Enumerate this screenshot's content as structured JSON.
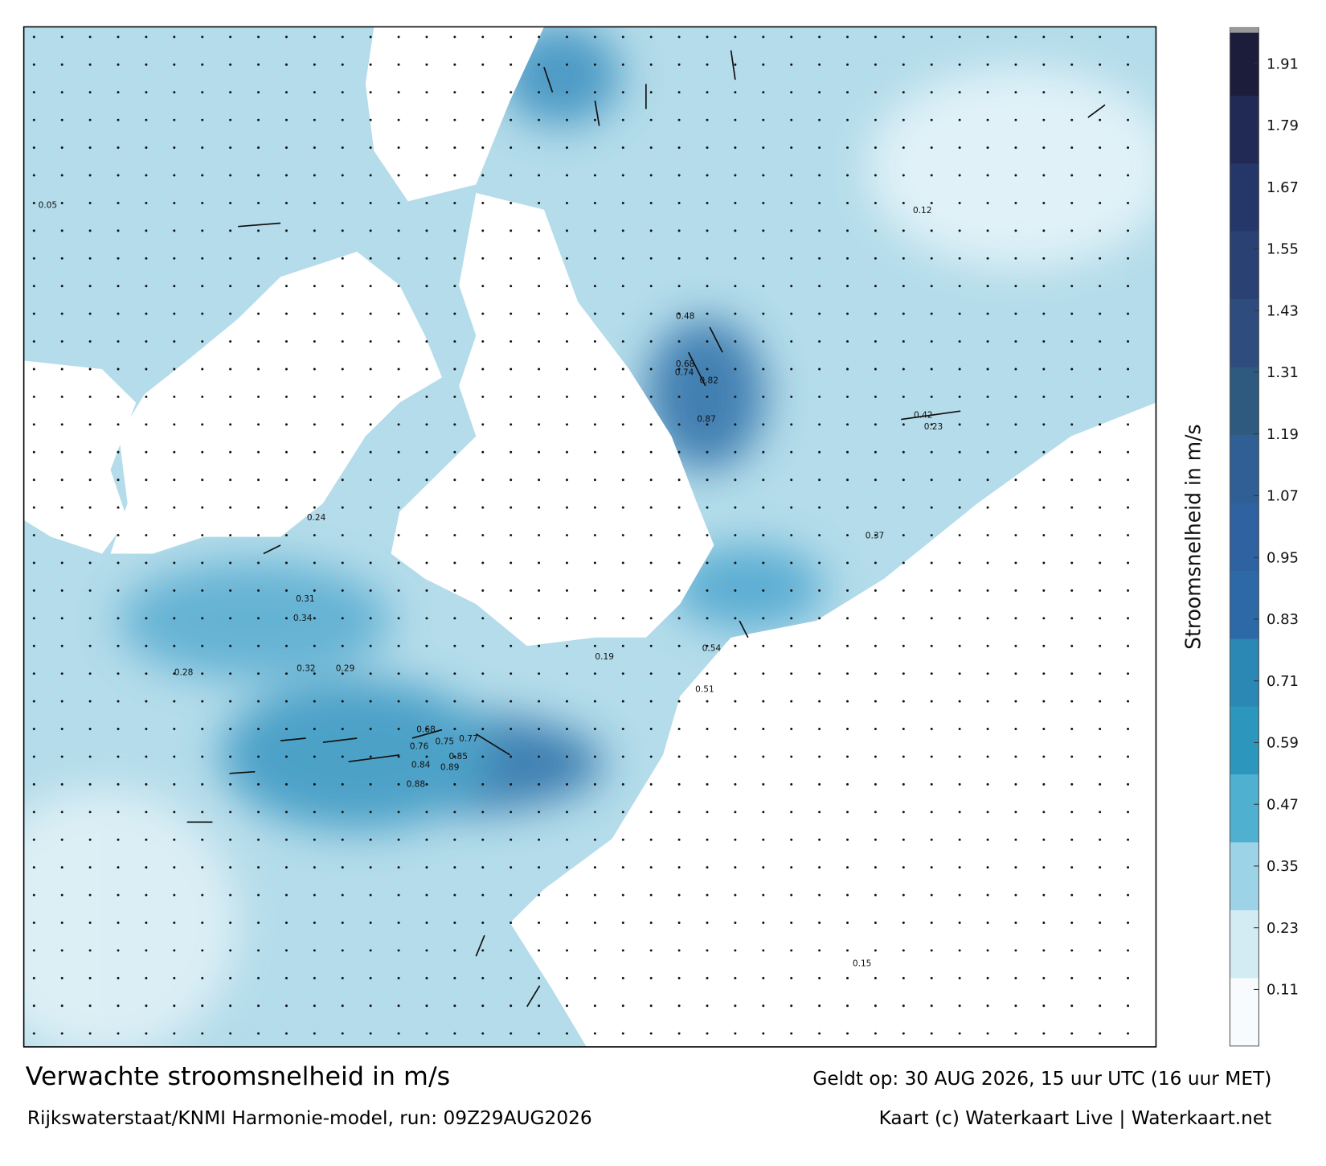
{
  "map": {
    "title": "Verwachte stroomsnelheid in m/s",
    "subtitle": "Rijkswaterstaat/KNMI Harmonie-model, run: 09Z29AUG2026",
    "valid_time": "Geldt op: 30 AUG 2026, 15 uur UTC (16 uur MET)",
    "credit": "Kaart (c) Waterkaart Live | Waterkaart.net",
    "speed_labels": [
      "0.84",
      "0.89",
      "0.85",
      "0.76",
      "0.88",
      "0.68",
      "0.75",
      "0.77",
      "0.82",
      "0.74",
      "0.87",
      "0.68",
      "0.54",
      "0.51",
      "0.48",
      "0.42",
      "0.37",
      "0.31",
      "0.29",
      "0.23",
      "0.19",
      "0.15",
      "0.12",
      "0.05",
      "0.34",
      "0.32",
      "0.28",
      "0.24"
    ]
  },
  "colorbar": {
    "label": "Stroomsnelheid in m/s",
    "lim": [
      0,
      1.98
    ],
    "ticks": [
      0.11,
      0.23,
      0.35,
      0.47,
      0.59,
      0.71,
      0.83,
      0.95,
      1.07,
      1.19,
      1.31,
      1.43,
      1.55,
      1.67,
      1.79,
      1.91
    ],
    "colors": [
      "#f7fbfd",
      "#d3ecf4",
      "#9dd3e6",
      "#4fb0d0",
      "#2c96bc",
      "#2b87b3",
      "#2c69a6",
      "#2f62a0",
      "#2f5f95",
      "#2e5a7f",
      "#2f4c7e",
      "#2a4173",
      "#253768",
      "#212a55",
      "#1b1d3b"
    ]
  }
}
